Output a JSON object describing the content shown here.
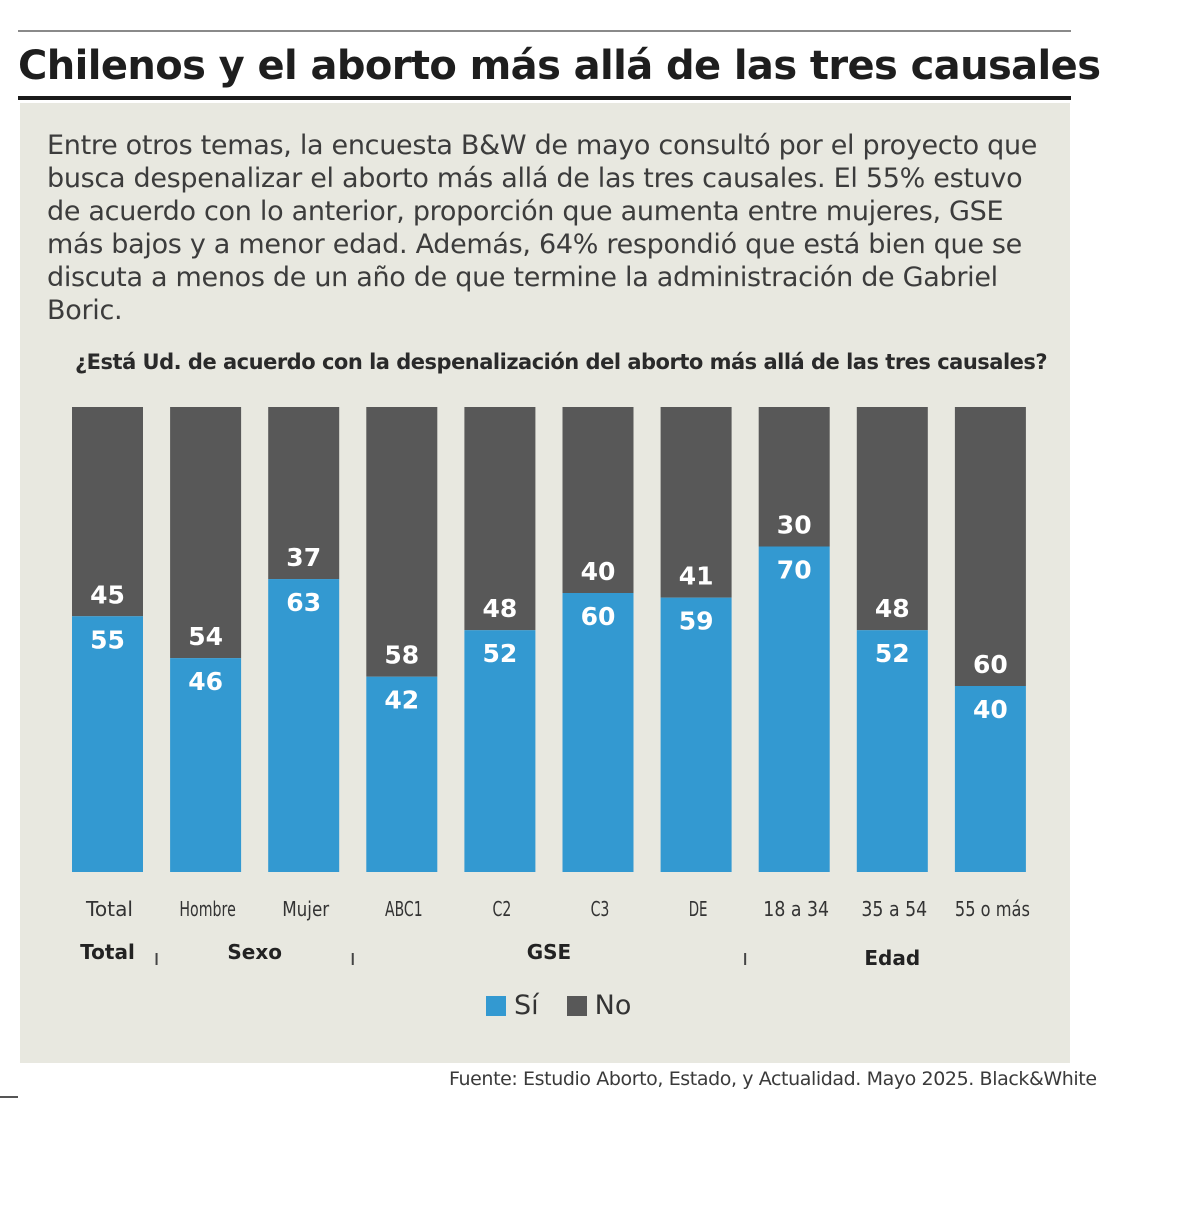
{
  "title": "Chilenos y el aborto más allá de las tres causales",
  "intro": "Entre otros temas, la encuesta B&W de mayo consultó por el proyecto que busca despenalizar el aborto más allá de las tres causales. El 55% estuvo de acuerdo con lo anterior, proporción que aumenta entre mujeres, GSE más bajos y a menor edad. Además, 64% respondió que está bien que se discuta a menos de un año de que termine la administración de Gabriel Boric.",
  "source": "Fuente: Estudio Aborto, Estado, y Actualidad. Mayo 2025. Black&White",
  "legend": {
    "si": "Sí",
    "no": "No"
  },
  "colors": {
    "si": "#3399d1",
    "no": "#585858",
    "background": "#e8e8e0",
    "label": "#ffffff"
  },
  "chart_data": {
    "type": "bar",
    "stacked": true,
    "title": "¿Está Ud. de acuerdo con la despenalización del aborto más allá de las tres causales?",
    "categories": [
      "Total",
      "Hombre",
      "Mujer",
      "ABC1",
      "C2",
      "C3",
      "DE",
      "18 a 34",
      "35 a 54",
      "55 o más"
    ],
    "groups": [
      {
        "label": "Total",
        "categories": [
          "Total"
        ]
      },
      {
        "label": "Sexo",
        "categories": [
          "Hombre",
          "Mujer"
        ]
      },
      {
        "label": "GSE",
        "categories": [
          "ABC1",
          "C2",
          "C3",
          "DE"
        ]
      },
      {
        "label": "Edad",
        "categories": [
          "18 a 34",
          "35 a 54",
          "55 o más"
        ]
      }
    ],
    "series": [
      {
        "name": "Sí",
        "values": [
          55,
          46,
          63,
          42,
          52,
          60,
          59,
          70,
          52,
          40
        ]
      },
      {
        "name": "No",
        "values": [
          45,
          54,
          37,
          58,
          48,
          40,
          41,
          30,
          48,
          60
        ]
      }
    ],
    "ylim": [
      0,
      100
    ],
    "xlabel": "",
    "ylabel": ""
  }
}
